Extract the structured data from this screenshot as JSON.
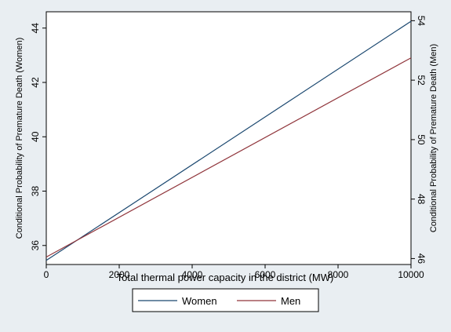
{
  "chart_data": {
    "type": "line",
    "xlabel": "Total thermal power capacity in the district (MW)",
    "ylabel_left": "Conditional Probability of Premature Death (Women)",
    "ylabel_right": "Conditional Probability of Premature Death (Men)",
    "x_ticks": [
      0,
      2000,
      4000,
      6000,
      8000,
      10000
    ],
    "y_left_ticks": [
      36,
      38,
      40,
      42,
      44
    ],
    "y_right_ticks": [
      46,
      48,
      50,
      52,
      54
    ],
    "xlim": [
      0,
      10000
    ],
    "ylim_left": [
      35.3,
      44.6
    ],
    "ylim_right": [
      45.8,
      54.3
    ],
    "series": [
      {
        "name": "Women",
        "axis": "left",
        "color": "#1a476f",
        "x": [
          0,
          10000
        ],
        "y": [
          35.45,
          44.25
        ]
      },
      {
        "name": "Men",
        "axis": "right",
        "color": "#90353b",
        "x": [
          0,
          10000
        ],
        "y": [
          46.05,
          52.75
        ]
      }
    ],
    "legend": {
      "position": "bottom",
      "entries": [
        "Women",
        "Men"
      ]
    },
    "grid": false
  }
}
